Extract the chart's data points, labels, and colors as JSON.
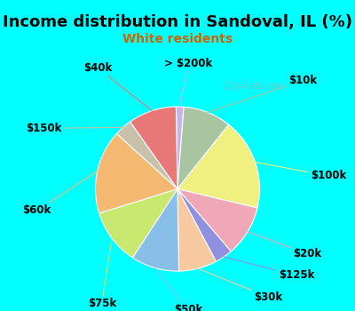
{
  "title": "Income distribution in Sandoval, IL (%)",
  "subtitle": "White residents",
  "background_color": "#00ffff",
  "chart_bg": "#e8f5ef",
  "labels": [
    "> $200k",
    "$10k",
    "$100k",
    "$20k",
    "$125k",
    "$30k",
    "$50k",
    "$75k",
    "$60k",
    "$150k",
    "$40k"
  ],
  "values": [
    1.5,
    9.5,
    18.0,
    10.0,
    3.5,
    7.5,
    9.5,
    11.0,
    16.5,
    3.5,
    9.5
  ],
  "colors": [
    "#c8b4e8",
    "#a8c4a0",
    "#f0f080",
    "#f0a8b8",
    "#9090e0",
    "#f8c8a0",
    "#88bfe8",
    "#c8e870",
    "#f5b870",
    "#c8c0a8",
    "#e87878"
  ],
  "watermark": "City-Data.com",
  "title_fontsize": 13,
  "subtitle_fontsize": 10,
  "label_fontsize": 8.5
}
